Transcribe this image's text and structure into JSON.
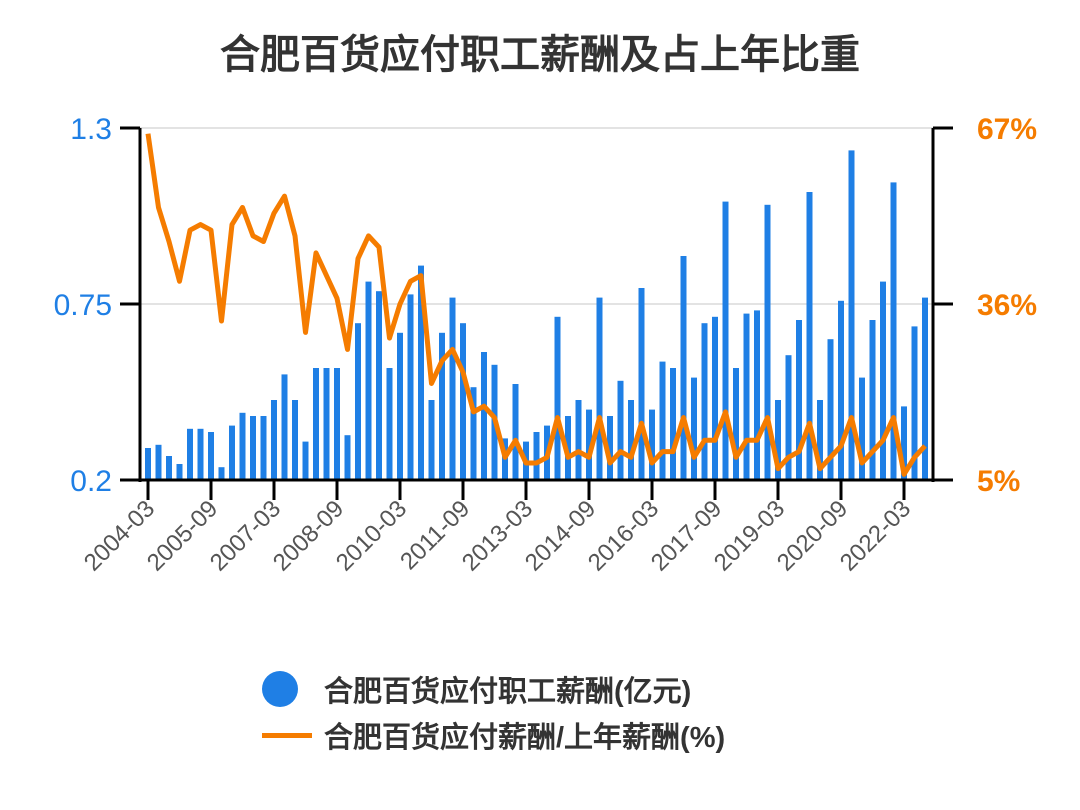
{
  "chart_data": {
    "type": "bar+line",
    "title": "合肥百货应付职工薪酬及占上年比重",
    "x": [
      "2004-03",
      "2004-06",
      "2004-09",
      "2004-12",
      "2005-03",
      "2005-06",
      "2005-09",
      "2005-12",
      "2006-03",
      "2006-06",
      "2006-09",
      "2006-12",
      "2007-03",
      "2007-06",
      "2007-09",
      "2007-12",
      "2008-03",
      "2008-06",
      "2008-09",
      "2008-12",
      "2009-03",
      "2009-06",
      "2009-09",
      "2009-12",
      "2010-03",
      "2010-06",
      "2010-09",
      "2010-12",
      "2011-03",
      "2011-06",
      "2011-09",
      "2011-12",
      "2012-03",
      "2012-06",
      "2012-09",
      "2012-12",
      "2013-03",
      "2013-06",
      "2013-09",
      "2013-12",
      "2014-03",
      "2014-06",
      "2014-09",
      "2014-12",
      "2015-03",
      "2015-06",
      "2015-09",
      "2015-12",
      "2016-03",
      "2016-06",
      "2016-09",
      "2016-12",
      "2017-03",
      "2017-06",
      "2017-09",
      "2017-12",
      "2018-03",
      "2018-06",
      "2018-09",
      "2018-12",
      "2019-03",
      "2019-06",
      "2019-09",
      "2019-12",
      "2020-03",
      "2020-06",
      "2020-09",
      "2020-12",
      "2021-03",
      "2021-06",
      "2021-09",
      "2021-12",
      "2022-03",
      "2022-06",
      "2022-09"
    ],
    "x_tick_labels": [
      "2004-03",
      "2005-09",
      "2007-03",
      "2008-09",
      "2010-03",
      "2011-09",
      "2013-03",
      "2014-09",
      "2016-03",
      "2017-09",
      "2019-03",
      "2020-09",
      "2022-03"
    ],
    "series": [
      {
        "name": "合肥百货应付职工薪酬(亿元)",
        "type": "bar",
        "axis": "left",
        "color": "#1f7fe5",
        "values": [
          0.3,
          0.31,
          0.275,
          0.25,
          0.36,
          0.36,
          0.35,
          0.24,
          0.37,
          0.41,
          0.4,
          0.4,
          0.45,
          0.53,
          0.45,
          0.32,
          0.55,
          0.55,
          0.55,
          0.34,
          0.69,
          0.82,
          0.79,
          0.55,
          0.66,
          0.78,
          0.87,
          0.45,
          0.66,
          0.77,
          0.69,
          0.49,
          0.6,
          0.56,
          0.33,
          0.5,
          0.32,
          0.35,
          0.37,
          0.71,
          0.4,
          0.45,
          0.42,
          0.77,
          0.4,
          0.51,
          0.45,
          0.8,
          0.42,
          0.57,
          0.55,
          0.9,
          0.52,
          0.69,
          0.71,
          1.07,
          0.55,
          0.72,
          0.73,
          1.06,
          0.45,
          0.59,
          0.7,
          1.1,
          0.45,
          0.64,
          0.76,
          1.23,
          0.52,
          0.7,
          0.82,
          1.13,
          0.43,
          0.68,
          0.77
        ]
      },
      {
        "name": "合肥百货应付薪酬/上年薪酬(%)",
        "type": "line",
        "axis": "right",
        "color": "#f57c00",
        "values": [
          66,
          53,
          47,
          40,
          49,
          50,
          49,
          33,
          50,
          53,
          48,
          47,
          52,
          55,
          48,
          31,
          45,
          41,
          37,
          28,
          44,
          48,
          46,
          30,
          36,
          40,
          41,
          22,
          26,
          28,
          24,
          17,
          18,
          16,
          9,
          12,
          8,
          8,
          9,
          16,
          9,
          10,
          9,
          16,
          8,
          10,
          9,
          15,
          8,
          10,
          10,
          16,
          9,
          12,
          12,
          17,
          9,
          12,
          12,
          16,
          7,
          9,
          10,
          15,
          7,
          9,
          11,
          16,
          8,
          10,
          12,
          16,
          6,
          9,
          11
        ]
      }
    ],
    "left_axis": {
      "ticks": [
        "0.2",
        "0.75",
        "1.3"
      ],
      "range": [
        0.2,
        1.3
      ],
      "color": "#1f7fe5"
    },
    "right_axis": {
      "ticks": [
        "5%",
        "36%",
        "67%"
      ],
      "range": [
        5,
        67
      ],
      "color": "#f57c00"
    },
    "grid": true,
    "legend_placement": "bottom"
  }
}
